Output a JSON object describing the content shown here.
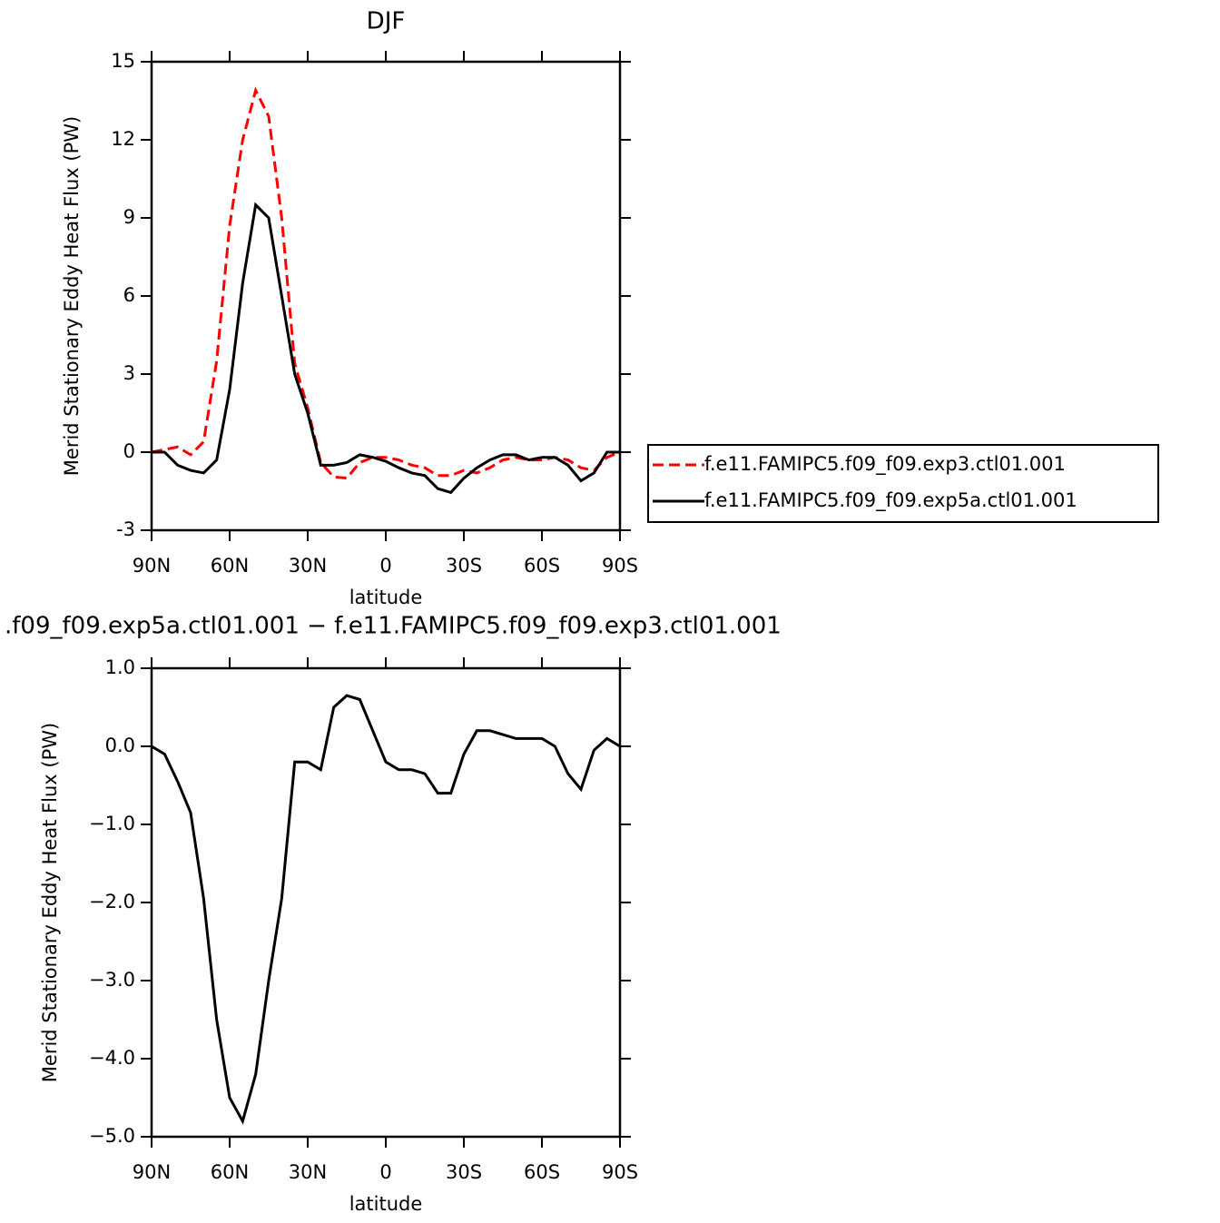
{
  "chart_data": [
    {
      "type": "line",
      "title": "DJF",
      "xlabel": "latitude",
      "ylabel": "Merid Stationary Eddy Heat Flux (PW)",
      "x": [
        90,
        85,
        80,
        75,
        70,
        65,
        60,
        55,
        50,
        45,
        40,
        35,
        30,
        25,
        20,
        15,
        10,
        5,
        0,
        -5,
        -10,
        -15,
        -20,
        -25,
        -30,
        -35,
        -40,
        -45,
        -50,
        -55,
        -60,
        -65,
        -70,
        -75,
        -80,
        -85,
        -90
      ],
      "xlim": [
        90,
        -90
      ],
      "xticks": [
        {
          "value": 90,
          "label": "90N"
        },
        {
          "value": 60,
          "label": "60N"
        },
        {
          "value": 30,
          "label": "30N"
        },
        0,
        {
          "value": -30,
          "label": "30S"
        },
        {
          "value": -60,
          "label": "60S"
        },
        {
          "value": -90,
          "label": "90S"
        }
      ],
      "ylim": [
        -3,
        15
      ],
      "yticks": [
        -3,
        0,
        3,
        6,
        9,
        12,
        15
      ],
      "legend": "right",
      "series": [
        {
          "name": "f.e11.FAMIPC5.f09_f09.exp3.ctl01.001",
          "color": "#ff0000",
          "linestyle": "dashed",
          "values": [
            0,
            0.1,
            0.2,
            -0.1,
            0.4,
            3.5,
            8.7,
            12.0,
            13.9,
            12.9,
            9.0,
            3.4,
            1.7,
            -0.4,
            -0.95,
            -1.0,
            -0.4,
            -0.2,
            -0.2,
            -0.3,
            -0.5,
            -0.6,
            -0.9,
            -0.9,
            -0.7,
            -0.8,
            -0.6,
            -0.3,
            -0.2,
            -0.3,
            -0.3,
            -0.2,
            -0.3,
            -0.6,
            -0.7,
            -0.2,
            0
          ]
        },
        {
          "name": "f.e11.FAMIPC5.f09_f09.exp5a.ctl01.001",
          "color": "#000000",
          "linestyle": "solid",
          "values": [
            0,
            0,
            -0.5,
            -0.7,
            -0.8,
            -0.3,
            2.4,
            6.5,
            9.5,
            9.0,
            6.0,
            3.0,
            1.5,
            -0.5,
            -0.5,
            -0.4,
            -0.1,
            -0.2,
            -0.35,
            -0.6,
            -0.8,
            -0.9,
            -1.4,
            -1.55,
            -1.0,
            -0.6,
            -0.3,
            -0.1,
            -0.1,
            -0.3,
            -0.2,
            -0.2,
            -0.5,
            -1.1,
            -0.8,
            0,
            0
          ]
        }
      ]
    },
    {
      "type": "line",
      "title": ".f09_f09.exp5a.ctl01.001 − f.e11.FAMIPC5.f09_f09.exp3.ctl01.001",
      "xlabel": "latitude",
      "ylabel": "Merid Stationary Eddy Heat Flux (PW)",
      "x": [
        90,
        85,
        80,
        75,
        70,
        65,
        60,
        55,
        50,
        45,
        40,
        35,
        30,
        25,
        20,
        15,
        10,
        5,
        0,
        -5,
        -10,
        -15,
        -20,
        -25,
        -30,
        -35,
        -40,
        -45,
        -50,
        -55,
        -60,
        -65,
        -70,
        -75,
        -80,
        -85,
        -90
      ],
      "xlim": [
        90,
        -90
      ],
      "xticks": [
        {
          "value": 90,
          "label": "90N"
        },
        {
          "value": 60,
          "label": "60N"
        },
        {
          "value": 30,
          "label": "30N"
        },
        0,
        {
          "value": -30,
          "label": "30S"
        },
        {
          "value": -60,
          "label": "60S"
        },
        {
          "value": -90,
          "label": "90S"
        }
      ],
      "ylim": [
        -5,
        1
      ],
      "yticks": [
        {
          "value": -5,
          "label": "−5.0"
        },
        {
          "value": -4,
          "label": "−4.0"
        },
        {
          "value": -3,
          "label": "−3.0"
        },
        {
          "value": -2,
          "label": "−2.0"
        },
        {
          "value": -1,
          "label": "−1.0"
        },
        {
          "value": 0,
          "label": "0.0"
        },
        {
          "value": 1,
          "label": "1.0"
        }
      ],
      "series": [
        {
          "color": "#000000",
          "linestyle": "solid",
          "values": [
            0,
            -0.1,
            -0.45,
            -0.85,
            -1.95,
            -3.5,
            -4.5,
            -4.8,
            -4.2,
            -3.0,
            -1.95,
            -0.2,
            -0.2,
            -0.3,
            0.5,
            0.65,
            0.6,
            0.2,
            -0.2,
            -0.3,
            -0.3,
            -0.35,
            -0.6,
            -0.6,
            -0.1,
            0.2,
            0.2,
            0.15,
            0.1,
            0.1,
            0.1,
            0.0,
            -0.35,
            -0.55,
            -0.05,
            0.1,
            0
          ]
        }
      ]
    }
  ]
}
